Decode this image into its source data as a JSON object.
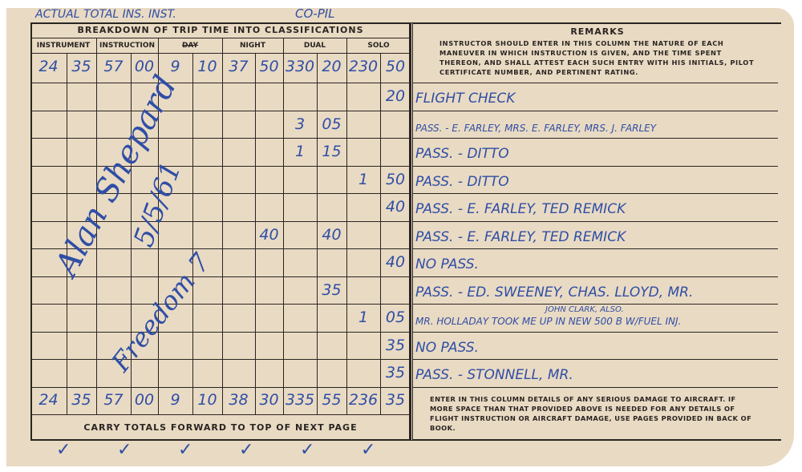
{
  "header": {
    "title": "BREAKDOWN OF TRIP TIME INTO CLASSIFICATIONS",
    "handwritten_note": "ACTUAL TOTAL INS. INST.",
    "columns": [
      "INSTRUMENT",
      "INSTRUCTION",
      "DAY",
      "NIGHT",
      "DUAL",
      "SOLO"
    ],
    "dual_overwrite": "CO-PIL"
  },
  "brought_forward": [
    "24",
    "35",
    "57",
    "00",
    "9",
    "10",
    "37",
    "50",
    "330",
    "20",
    "230",
    "50"
  ],
  "rows": [
    {
      "cells": [
        "",
        "",
        "",
        "",
        "",
        "",
        "",
        "",
        "",
        "",
        "",
        "20"
      ],
      "remark": "FLIGHT CHECK"
    },
    {
      "cells": [
        "",
        "",
        "",
        "",
        "",
        "",
        "",
        "",
        "3",
        "05",
        "",
        ""
      ],
      "remark": "PASS. - E. FARLEY, MRS. E. FARLEY, MRS. J. FARLEY"
    },
    {
      "cells": [
        "",
        "",
        "",
        "",
        "",
        "",
        "",
        "",
        "1",
        "15",
        "",
        ""
      ],
      "remark": "PASS. - DITTO"
    },
    {
      "cells": [
        "",
        "",
        "",
        "",
        "",
        "",
        "",
        "",
        "",
        "",
        "1",
        "50"
      ],
      "remark": "PASS. - DITTO"
    },
    {
      "cells": [
        "",
        "",
        "",
        "",
        "",
        "",
        "",
        "",
        "",
        "",
        "",
        "40"
      ],
      "remark": "PASS. - E. FARLEY, TED REMICK"
    },
    {
      "cells": [
        "",
        "",
        "",
        "",
        "",
        "",
        "",
        "40",
        "",
        "40",
        "",
        ""
      ],
      "remark": "PASS. - E. FARLEY, TED REMICK"
    },
    {
      "cells": [
        "",
        "",
        "",
        "",
        "",
        "",
        "",
        "",
        "",
        "",
        "",
        "40"
      ],
      "remark": "NO PASS."
    },
    {
      "cells": [
        "",
        "",
        "",
        "",
        "",
        "",
        "",
        "",
        "",
        "35",
        "",
        ""
      ],
      "remark": "PASS. - ED. SWEENEY, CHAS. LLOYD, MR."
    },
    {
      "cells": [
        "",
        "",
        "",
        "",
        "",
        "",
        "",
        "",
        "",
        "",
        "1",
        "05"
      ],
      "remark": "MR. HOLLADAY TOOK ME UP IN NEW 500 B W/FUEL INJ.",
      "insert": "JOHN CLARK, ALSO."
    },
    {
      "cells": [
        "",
        "",
        "",
        "",
        "",
        "",
        "",
        "",
        "",
        "",
        "",
        "35"
      ],
      "remark": "NO PASS."
    },
    {
      "cells": [
        "",
        "",
        "",
        "",
        "",
        "",
        "",
        "",
        "",
        "",
        "",
        "35"
      ],
      "remark": "PASS. - STONNELL, MR."
    }
  ],
  "totals": [
    "24",
    "35",
    "57",
    "00",
    "9",
    "10",
    "38",
    "30",
    "335",
    "55",
    "236",
    "35"
  ],
  "carry_forward": "CARRY TOTALS FORWARD TO TOP OF NEXT PAGE",
  "remarks": {
    "title": "REMARKS",
    "instructions": "INSTRUCTOR SHOULD ENTER IN THIS COLUMN THE NATURE OF EACH MANEUVER IN WHICH INSTRUCTION IS GIVEN, AND THE TIME SPENT THEREON, AND SHALL ATTEST EACH SUCH ENTRY WITH HIS INITIALS, PILOT CERTIFICATE NUMBER, AND PERTINENT RATING.",
    "damage_note": "ENTER IN THIS COLUMN DETAILS OF ANY SERIOUS DAMAGE TO AIRCRAFT.   IF MORE SPACE THAN THAT PROVIDED ABOVE IS NEEDED FOR ANY DETAILS OF FLIGHT INSTRUCTION OR AIRCRAFT DAMAGE, USE PAGES PROVIDED IN BACK OF BOOK."
  },
  "signature": {
    "name": "Alan Shepard",
    "date": "5/5/61",
    "note": "Freedom 7"
  },
  "checkmarks": 6,
  "colors": {
    "paper": "#e9dac3",
    "ink": "#2f4ea6",
    "print": "#2a2522"
  }
}
